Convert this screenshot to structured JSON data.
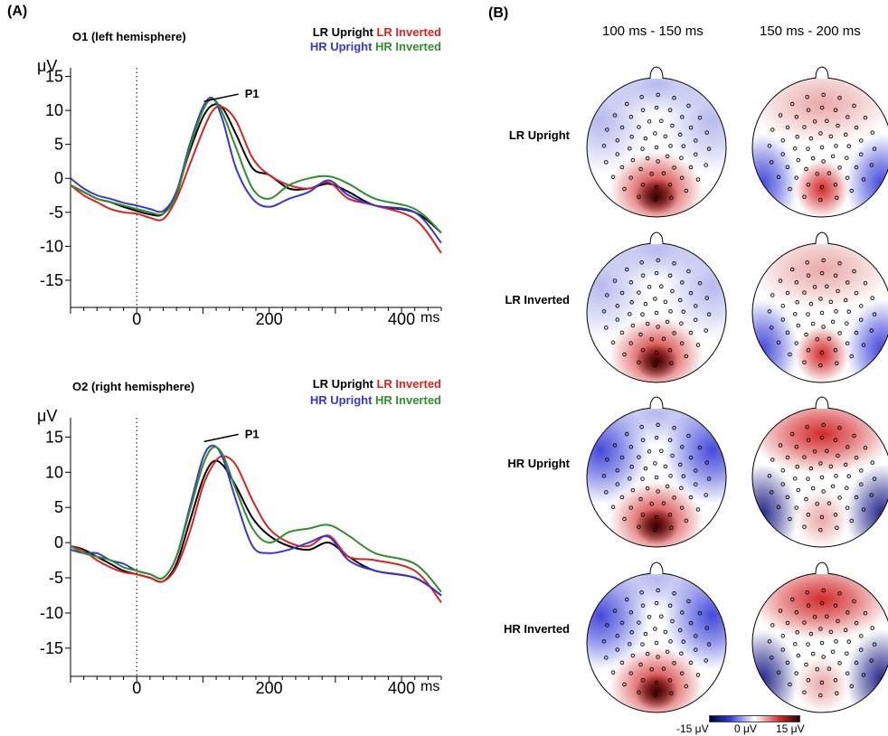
{
  "panel_labels": {
    "a": "(A)",
    "b": "(B)"
  },
  "legend": [
    {
      "name": "LR Upright",
      "color": "#000000"
    },
    {
      "name": "LR Inverted",
      "color": "#e0201c"
    },
    {
      "name": "HR Upright",
      "color": "#3b35d6"
    },
    {
      "name": "HR Inverted",
      "color": "#2f8f2a"
    }
  ],
  "chart_data": [
    {
      "type": "line",
      "title": "O1 (left hemisphere)",
      "ylabel": "μV",
      "xlabel": "ms",
      "xlim": [
        -100,
        460
      ],
      "ylim": [
        -19,
        18
      ],
      "xticks": [
        0,
        200,
        400
      ],
      "yticks": [
        15,
        10,
        5,
        0,
        -5,
        -10,
        -15
      ],
      "zero_line": "dotted at x=0",
      "annotation": {
        "text": "P1",
        "x": 140,
        "y": 12
      },
      "x": [
        -100,
        -80,
        -60,
        -40,
        -20,
        0,
        20,
        40,
        60,
        80,
        100,
        115,
        130,
        150,
        175,
        200,
        230,
        260,
        290,
        320,
        360,
        420,
        460
      ],
      "series": [
        {
          "name": "LR Upright",
          "values": [
            -1,
            -2,
            -3,
            -3.5,
            -4.2,
            -4.8,
            -5.3,
            -5.2,
            -2,
            4,
            9,
            10.8,
            10.3,
            6.5,
            1.5,
            0.5,
            -1.5,
            -1.5,
            -0.8,
            -2,
            -4,
            -5,
            -8
          ]
        },
        {
          "name": "LR Inverted",
          "values": [
            -1,
            -2.5,
            -3.5,
            -4.5,
            -5,
            -5.2,
            -5.8,
            -6,
            -3,
            2,
            7,
            10,
            10.5,
            8.5,
            3,
            0.5,
            -1,
            -1.5,
            -0.6,
            -3,
            -4,
            -6,
            -11
          ]
        },
        {
          "name": "HR Upright",
          "values": [
            0,
            -1.5,
            -2.5,
            -3,
            -3.6,
            -4,
            -4.5,
            -4.8,
            -2,
            5,
            10.5,
            11.8,
            8.5,
            1.5,
            -3,
            -4.2,
            -3,
            -2,
            -0.3,
            -2.5,
            -4,
            -5,
            -9.5
          ]
        },
        {
          "name": "HR Inverted",
          "values": [
            -1,
            -2,
            -3,
            -3.5,
            -4,
            -4.5,
            -5,
            -5.2,
            -2.5,
            4.5,
            10,
            11.7,
            9.5,
            4.5,
            -1.5,
            -3,
            -1,
            0,
            0.3,
            -0.8,
            -3,
            -4.5,
            -8
          ]
        }
      ]
    },
    {
      "type": "line",
      "title": "O2 (right hemisphere)",
      "ylabel": "μV",
      "xlabel": "ms",
      "xlim": [
        -100,
        460
      ],
      "ylim": [
        -19,
        18
      ],
      "xticks": [
        0,
        200,
        400
      ],
      "yticks": [
        15,
        10,
        5,
        0,
        -5,
        -10,
        -15
      ],
      "zero_line": "dotted at x=0",
      "annotation": {
        "text": "P1",
        "x": 140,
        "y": 15
      },
      "x": [
        -100,
        -80,
        -60,
        -40,
        -20,
        0,
        20,
        40,
        60,
        80,
        100,
        115,
        130,
        150,
        175,
        200,
        230,
        260,
        290,
        320,
        360,
        420,
        460
      ],
      "series": [
        {
          "name": "LR Upright",
          "values": [
            -0.5,
            -1,
            -2,
            -3,
            -4,
            -4.5,
            -5,
            -5.5,
            -3,
            3,
            9,
            11.5,
            11,
            8,
            3.5,
            1,
            -0.5,
            -1,
            0,
            -2,
            -4,
            -5,
            -7.5
          ]
        },
        {
          "name": "LR Inverted",
          "values": [
            -0.5,
            -1.2,
            -2.5,
            -3.5,
            -4.2,
            -4.5,
            -5,
            -5.5,
            -3.5,
            1.5,
            8,
            11,
            12.3,
            11,
            6,
            2,
            0,
            -0.5,
            1,
            -2,
            -2.5,
            -4,
            -8.5
          ]
        },
        {
          "name": "HR Upright",
          "values": [
            -1,
            -1.5,
            -1.5,
            -2.5,
            -3,
            -4,
            -4.5,
            -5,
            -2,
            5,
            12,
            13.8,
            12,
            6,
            -0.5,
            -1.5,
            -1,
            0,
            0.8,
            -2.5,
            -4,
            -5,
            -7.5
          ]
        },
        {
          "name": "HR Inverted",
          "values": [
            -0.5,
            -1.5,
            -2,
            -2.5,
            -3.5,
            -4,
            -4.5,
            -5,
            -2,
            4.5,
            11,
            13.5,
            12.5,
            7.5,
            2,
            0,
            1.5,
            2,
            2.5,
            1,
            -1.5,
            -3,
            -7
          ]
        }
      ]
    }
  ],
  "topomap": {
    "windows": [
      "100 ms - 150 ms",
      "150 ms - 200 ms"
    ],
    "conditions": [
      "LR Upright",
      "LR Inverted",
      "HR Upright",
      "HR Inverted"
    ],
    "colorbar": {
      "min_label": "-15 μV",
      "mid_label": "0 μV",
      "max_label": "15 μV",
      "colors": [
        "#00002a",
        "#2f3ad8",
        "#ffffff",
        "#d22a2a",
        "#2a0000"
      ]
    },
    "maps": [
      [
        {
          "occipital": "strong positive",
          "frontal": "weak negative"
        },
        {
          "occipital": "positive",
          "frontal": "weak positive",
          "lateral": "negative"
        }
      ],
      [
        {
          "occipital": "strong positive",
          "frontal": "weak negative"
        },
        {
          "occipital": "positive",
          "frontal": "weak positive",
          "lateral": "negative"
        }
      ],
      [
        {
          "occipital": "strong positive",
          "frontal": "negative"
        },
        {
          "occipital": "weak positive",
          "frontal": "positive",
          "lateral": "strong negative"
        }
      ],
      [
        {
          "occipital": "strong positive",
          "frontal": "negative"
        },
        {
          "occipital": "weak positive",
          "frontal": "positive",
          "lateral": "strong negative"
        }
      ]
    ]
  }
}
